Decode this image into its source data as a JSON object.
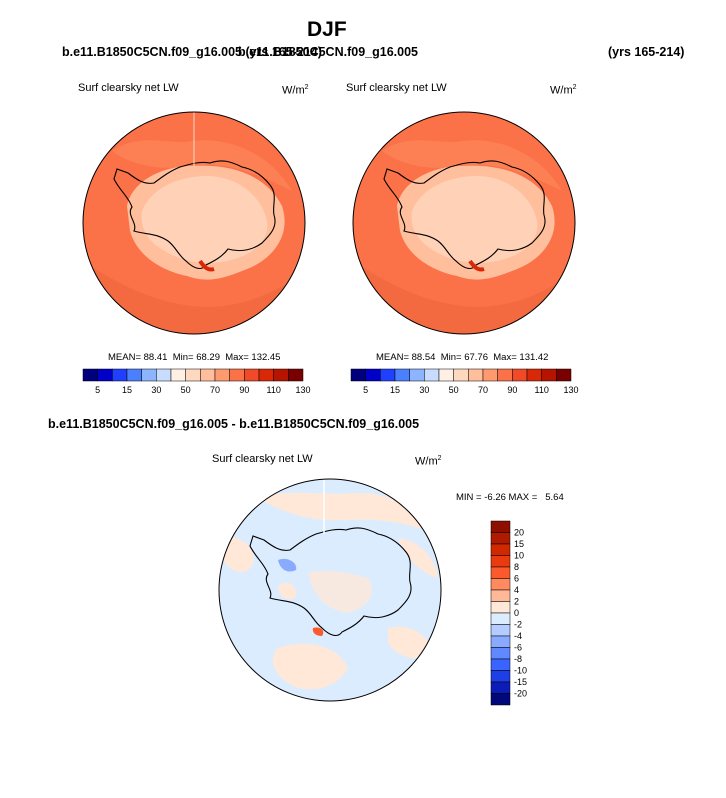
{
  "page": {
    "title": "DJF",
    "case_a": "b.e11.B1850C5CN.f09_g16.005 (yrs 165-214)",
    "case_b": "b.e11.B1850C5CN.f09_g16.005",
    "case_b_years": "(yrs 165-214)",
    "diff_title": "b.e11.B1850C5CN.f09_g16.005 - b.e11.B1850C5CN.f09_g16.005"
  },
  "chart_data": [
    {
      "type": "heatmap",
      "projection": "south-polar-stereographic",
      "variable_label": "Surf clearsky net LW",
      "units": "W/m",
      "units_exp": "2",
      "stats": {
        "mean_label": "MEAN=",
        "mean": "88.41",
        "min_label": "Min=",
        "min": "68.29",
        "max_label": "Max=",
        "max": "132.45"
      },
      "levels": [
        5,
        15,
        30,
        50,
        70,
        90,
        110,
        130
      ],
      "colors": [
        "#00007f",
        "#0000c8",
        "#2040ff",
        "#4a80ff",
        "#8cb4ff",
        "#c8dcff",
        "#fff0e6",
        "#ffd8c0",
        "#ffbe9c",
        "#ff9a6e",
        "#fb7148",
        "#f04a28",
        "#d82808",
        "#b41400",
        "#7a0000"
      ]
    },
    {
      "type": "heatmap",
      "projection": "south-polar-stereographic",
      "variable_label": "Surf clearsky net LW",
      "units": "W/m",
      "units_exp": "2",
      "stats": {
        "mean_label": "MEAN=",
        "mean": "88.54",
        "min_label": "Min=",
        "min": "67.76",
        "max_label": "Max=",
        "max": "131.42"
      },
      "levels": [
        5,
        15,
        30,
        50,
        70,
        90,
        110,
        130
      ],
      "colors": [
        "#00007f",
        "#0000c8",
        "#2040ff",
        "#4a80ff",
        "#8cb4ff",
        "#c8dcff",
        "#fff0e6",
        "#ffd8c0",
        "#ffbe9c",
        "#ff9a6e",
        "#fb7148",
        "#f04a28",
        "#d82808",
        "#b41400",
        "#7a0000"
      ]
    },
    {
      "type": "heatmap",
      "projection": "south-polar-stereographic",
      "variable_label": "Surf clearsky net LW",
      "units": "W/m",
      "units_exp": "2",
      "stats": {
        "min_label": "MIN =",
        "min": "-6.26",
        "max_label": "MAX =",
        "max": "5.64"
      },
      "levels": [
        20,
        15,
        10,
        8,
        6,
        4,
        2,
        0,
        -2,
        -4,
        -6,
        -8,
        -10,
        -15,
        -20
      ],
      "colors": [
        "#8e0e00",
        "#b01a00",
        "#d02800",
        "#ec3a10",
        "#fc5a2c",
        "#ff8a60",
        "#ffb898",
        "#ffe8d8",
        "#dcecff",
        "#b4ccff",
        "#8aaaff",
        "#6088ff",
        "#3a64ff",
        "#1e3ee6",
        "#0c1cb8",
        "#00087a"
      ]
    }
  ]
}
